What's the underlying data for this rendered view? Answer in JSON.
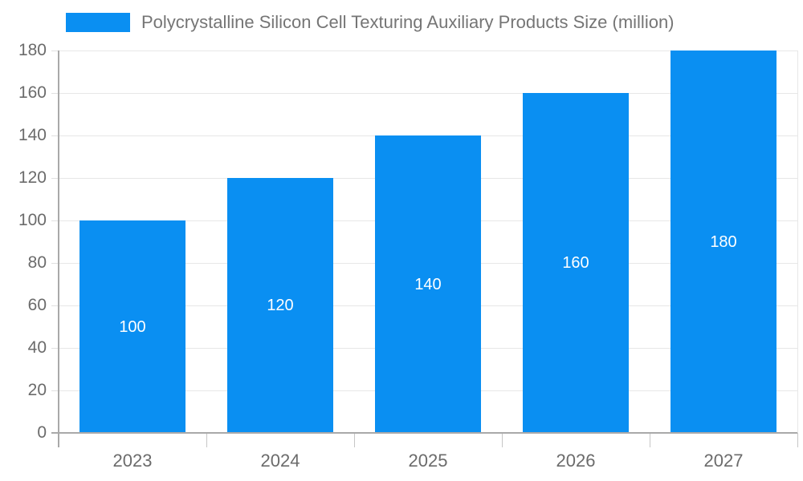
{
  "chart_data": {
    "type": "bar",
    "title": "Polycrystalline Silicon Cell Texturing Auxiliary Products Size (million)",
    "categories": [
      "2023",
      "2024",
      "2025",
      "2026",
      "2027"
    ],
    "values": [
      100,
      120,
      140,
      160,
      180
    ],
    "data_labels": [
      "100",
      "120",
      "140",
      "160",
      "180"
    ],
    "xlabel": "",
    "ylabel": "",
    "ylim": [
      0,
      180
    ],
    "yticks": [
      0,
      20,
      40,
      60,
      80,
      100,
      120,
      140,
      160,
      180
    ],
    "grid": true,
    "legend": {
      "position": "top-left",
      "entries": [
        "Polycrystalline Silicon Cell Texturing Auxiliary Products Size (million)"
      ]
    }
  },
  "colors": {
    "bar": "#0a8ff2",
    "bar_label_text": "#ffffff",
    "legend_text": "#757575",
    "tick_text": "#6b6b6b",
    "gridline": "#e7e7e7",
    "y_tick_mark": "#e0e0e0",
    "x_tick_mark": "#c6c6c6",
    "axis": "#a9a9a9",
    "background": "#ffffff"
  }
}
